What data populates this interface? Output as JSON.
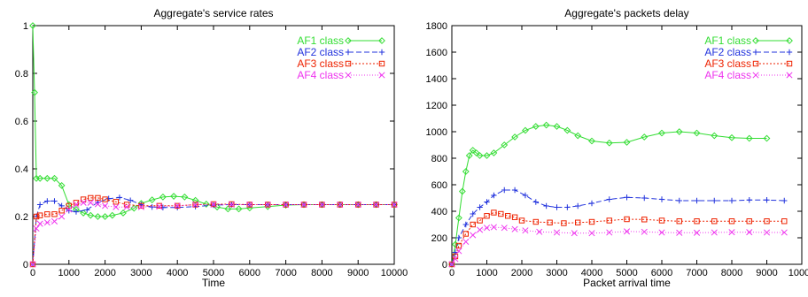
{
  "chart_data": [
    {
      "type": "line",
      "title": "Aggregate's service rates",
      "xlabel": "Time",
      "ylabel": "",
      "xlim": [
        0,
        10000
      ],
      "ylim": [
        0,
        1
      ],
      "xticks": [
        0,
        1000,
        2000,
        3000,
        4000,
        5000,
        6000,
        7000,
        8000,
        9000,
        10000
      ],
      "yticks": [
        0,
        0.2,
        0.4,
        0.6,
        0.8,
        1
      ],
      "ytick_labels": [
        "0",
        "0.2",
        "0.4",
        "0.6",
        "0.8",
        "1"
      ],
      "grid": false,
      "legend": "top-right",
      "series": [
        {
          "name": "AF1 class",
          "color": "#33dd33",
          "dash": "",
          "marker": "diamond",
          "x": [
            0,
            50,
            100,
            200,
            400,
            600,
            800,
            1000,
            1200,
            1400,
            1600,
            1800,
            2000,
            2200,
            2500,
            2800,
            3000,
            3300,
            3600,
            3900,
            4200,
            4500,
            4800,
            5100,
            5400,
            5700,
            6000,
            6500,
            7000,
            7500,
            8000,
            8500,
            9000,
            9500,
            10000
          ],
          "y": [
            1.0,
            0.72,
            0.36,
            0.36,
            0.36,
            0.36,
            0.33,
            0.25,
            0.23,
            0.215,
            0.205,
            0.2,
            0.2,
            0.205,
            0.215,
            0.235,
            0.255,
            0.27,
            0.282,
            0.285,
            0.282,
            0.268,
            0.252,
            0.24,
            0.232,
            0.232,
            0.236,
            0.242,
            0.248,
            0.25,
            0.25,
            0.25,
            0.25,
            0.25,
            0.25
          ]
        },
        {
          "name": "AF2 class",
          "color": "#2233dd",
          "dash": "6,3",
          "marker": "plus",
          "x": [
            0,
            100,
            200,
            400,
            600,
            800,
            1000,
            1200,
            1500,
            1800,
            2100,
            2400,
            2700,
            3000,
            3300,
            3600,
            4000,
            4500,
            5000,
            5500,
            6000,
            6500,
            7000,
            7500,
            8000,
            8500,
            9000,
            9500,
            10000
          ],
          "y": [
            0.0,
            0.2,
            0.25,
            0.265,
            0.265,
            0.245,
            0.225,
            0.22,
            0.228,
            0.26,
            0.275,
            0.28,
            0.268,
            0.25,
            0.24,
            0.238,
            0.238,
            0.242,
            0.248,
            0.25,
            0.25,
            0.25,
            0.25,
            0.25,
            0.25,
            0.25,
            0.25,
            0.25,
            0.25
          ]
        },
        {
          "name": "AF3 class",
          "color": "#ee2200",
          "dash": "2,2",
          "marker": "square",
          "x": [
            0,
            100,
            200,
            400,
            600,
            800,
            1000,
            1200,
            1400,
            1600,
            1800,
            2000,
            2300,
            2600,
            3000,
            3500,
            4000,
            4500,
            5000,
            5500,
            6000,
            6500,
            7000,
            7500,
            8000,
            8500,
            9000,
            9500,
            10000
          ],
          "y": [
            0.0,
            0.2,
            0.205,
            0.21,
            0.21,
            0.225,
            0.245,
            0.258,
            0.272,
            0.278,
            0.278,
            0.272,
            0.262,
            0.25,
            0.245,
            0.245,
            0.245,
            0.25,
            0.252,
            0.252,
            0.25,
            0.25,
            0.25,
            0.25,
            0.25,
            0.25,
            0.25,
            0.25,
            0.25
          ]
        },
        {
          "name": "AF4 class",
          "color": "#ee33ee",
          "dash": "1,2",
          "marker": "cross",
          "x": [
            0,
            100,
            200,
            400,
            600,
            800,
            1000,
            1200,
            1400,
            1600,
            1800,
            2000,
            2300,
            2600,
            3000,
            3500,
            4000,
            4500,
            5000,
            5500,
            6000,
            6500,
            7000,
            7500,
            8000,
            8500,
            9000,
            9500,
            10000
          ],
          "y": [
            0.0,
            0.15,
            0.17,
            0.175,
            0.18,
            0.2,
            0.23,
            0.25,
            0.258,
            0.258,
            0.252,
            0.245,
            0.24,
            0.24,
            0.24,
            0.242,
            0.245,
            0.25,
            0.25,
            0.25,
            0.25,
            0.25,
            0.25,
            0.25,
            0.25,
            0.25,
            0.25,
            0.25,
            0.25
          ]
        }
      ]
    },
    {
      "type": "line",
      "title": "Aggregate's packets delay",
      "xlabel": "Packet arrival time",
      "ylabel": "",
      "xlim": [
        0,
        10000
      ],
      "ylim": [
        0,
        1800
      ],
      "xticks": [
        0,
        1000,
        2000,
        3000,
        4000,
        5000,
        6000,
        7000,
        8000,
        9000,
        10000
      ],
      "yticks": [
        0,
        200,
        400,
        600,
        800,
        1000,
        1200,
        1400,
        1600,
        1800
      ],
      "ytick_labels": [
        "0",
        "200",
        "400",
        "600",
        "800",
        "1000",
        "1200",
        "1400",
        "1600",
        "1800"
      ],
      "grid": false,
      "legend": "top-right",
      "series": [
        {
          "name": "AF1 class",
          "color": "#33dd33",
          "dash": "",
          "marker": "diamond",
          "x": [
            0,
            100,
            200,
            300,
            400,
            500,
            600,
            700,
            800,
            1000,
            1200,
            1500,
            1800,
            2100,
            2400,
            2700,
            3000,
            3300,
            3600,
            4000,
            4500,
            5000,
            5500,
            6000,
            6500,
            7000,
            7500,
            8000,
            8500,
            9000
          ],
          "y": [
            0,
            150,
            350,
            550,
            700,
            820,
            860,
            840,
            820,
            820,
            840,
            900,
            960,
            1010,
            1040,
            1050,
            1040,
            1010,
            970,
            930,
            915,
            920,
            960,
            990,
            1000,
            990,
            970,
            955,
            950,
            950
          ]
        },
        {
          "name": "AF2 class",
          "color": "#2233dd",
          "dash": "6,3",
          "marker": "plus",
          "x": [
            0,
            100,
            200,
            400,
            600,
            800,
            1000,
            1200,
            1500,
            1800,
            2100,
            2400,
            2700,
            3000,
            3300,
            3600,
            4000,
            4500,
            5000,
            5500,
            6000,
            6500,
            7000,
            7500,
            8000,
            8500,
            9000,
            9500
          ],
          "y": [
            0,
            90,
            200,
            300,
            380,
            430,
            470,
            520,
            560,
            560,
            520,
            470,
            440,
            430,
            430,
            440,
            460,
            490,
            505,
            500,
            490,
            480,
            480,
            480,
            480,
            485,
            485,
            480
          ]
        },
        {
          "name": "AF3 class",
          "color": "#ee2200",
          "dash": "2,2",
          "marker": "square",
          "x": [
            0,
            100,
            200,
            400,
            600,
            800,
            1000,
            1200,
            1400,
            1600,
            1800,
            2000,
            2400,
            2800,
            3200,
            3600,
            4000,
            4500,
            5000,
            5500,
            6000,
            6500,
            7000,
            7500,
            8000,
            8500,
            9000,
            9500
          ],
          "y": [
            0,
            60,
            140,
            230,
            300,
            330,
            365,
            390,
            380,
            365,
            355,
            330,
            320,
            315,
            310,
            315,
            320,
            330,
            340,
            338,
            330,
            325,
            325,
            325,
            325,
            325,
            325,
            325
          ]
        },
        {
          "name": "AF4 class",
          "color": "#ee33ee",
          "dash": "1,2",
          "marker": "cross",
          "x": [
            0,
            100,
            200,
            400,
            600,
            800,
            1000,
            1200,
            1500,
            1800,
            2100,
            2500,
            3000,
            3500,
            4000,
            4500,
            5000,
            5500,
            6000,
            6500,
            7000,
            7500,
            8000,
            8500,
            9000,
            9500
          ],
          "y": [
            0,
            40,
            100,
            170,
            220,
            260,
            275,
            280,
            275,
            265,
            255,
            245,
            240,
            235,
            235,
            240,
            248,
            245,
            240,
            238,
            238,
            240,
            242,
            242,
            240,
            240
          ]
        }
      ]
    }
  ]
}
